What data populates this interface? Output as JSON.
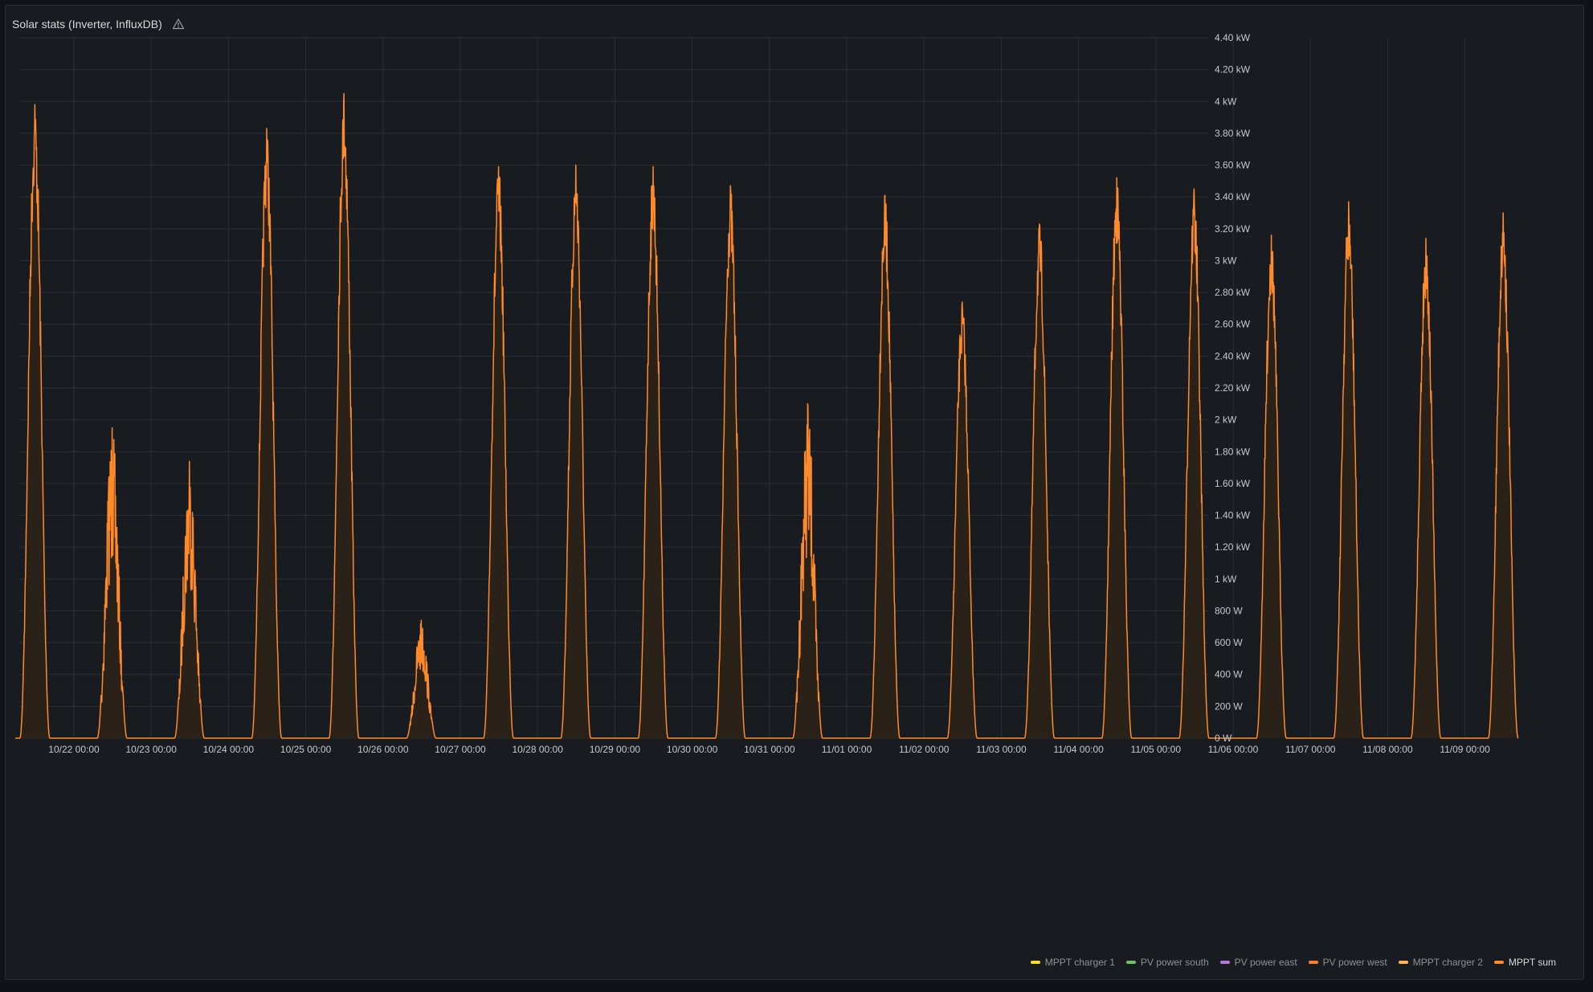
{
  "panel": {
    "title": "Solar stats (Inverter, InfluxDB)",
    "warning_icon": "warning-triangle-icon"
  },
  "colors": {
    "background": "#181b1f",
    "grid": "#2c2f35",
    "axis_text": "#c7c8ca",
    "series": "#ff8a2a",
    "fill": "#2a2119"
  },
  "legend": [
    {
      "label": "MPPT charger 1",
      "color": "#fade2a",
      "active": false
    },
    {
      "label": "PV power south",
      "color": "#73bf69",
      "active": false
    },
    {
      "label": "PV power east",
      "color": "#b877d9",
      "active": false
    },
    {
      "label": "PV power west",
      "color": "#ff7f3a",
      "active": false
    },
    {
      "label": "MPPT charger 2",
      "color": "#ffb357",
      "active": false
    },
    {
      "label": "MPPT sum",
      "color": "#ff8a2a",
      "active": true
    }
  ],
  "chart_data": {
    "type": "area",
    "x_tick_labels": [
      "10/22 00:00",
      "10/23 00:00",
      "10/24 00:00",
      "10/25 00:00",
      "10/26 00:00",
      "10/27 00:00",
      "10/28 00:00",
      "10/29 00:00",
      "10/30 00:00",
      "10/31 00:00",
      "11/01 00:00",
      "11/02 00:00",
      "11/03 00:00",
      "11/04 00:00",
      "11/05 00:00",
      "11/06 00:00",
      "11/07 00:00",
      "11/08 00:00",
      "11/09 00:00"
    ],
    "y_ticks": [
      0,
      200,
      400,
      600,
      800,
      1000,
      1200,
      1400,
      1600,
      1800,
      2000,
      2200,
      2400,
      2600,
      2800,
      3000,
      3200,
      3400,
      3600,
      3800,
      4000,
      4200,
      4400
    ],
    "y_tick_labels": [
      "0 W",
      "200 W",
      "400 W",
      "600 W",
      "800 W",
      "1 kW",
      "1.20 kW",
      "1.40 kW",
      "1.60 kW",
      "1.80 kW",
      "2 kW",
      "2.20 kW",
      "2.40 kW",
      "2.60 kW",
      "2.80 kW",
      "3 kW",
      "3.20 kW",
      "3.40 kW",
      "3.60 kW",
      "3.80 kW",
      "4 kW",
      "4.20 kW",
      "4.40 kW"
    ],
    "ylim": [
      0,
      4400
    ],
    "xlim": [
      "10/21 06:00",
      "11/09 12:00"
    ],
    "y_axis_position": "right",
    "grid": true,
    "legend_position": "bottom-right",
    "series": [
      {
        "name": "MPPT sum",
        "daily_peaks_w": [
          {
            "day": "10/21",
            "peak": 3980
          },
          {
            "day": "10/22",
            "peak": 1950
          },
          {
            "day": "10/23",
            "peak": 1740
          },
          {
            "day": "10/24",
            "peak": 3830
          },
          {
            "day": "10/25",
            "peak": 4050
          },
          {
            "day": "10/26",
            "peak": 740
          },
          {
            "day": "10/27",
            "peak": 3590
          },
          {
            "day": "10/28",
            "peak": 3600
          },
          {
            "day": "10/29",
            "peak": 3590
          },
          {
            "day": "10/30",
            "peak": 3470
          },
          {
            "day": "10/31",
            "peak": 2100
          },
          {
            "day": "11/01",
            "peak": 3410
          },
          {
            "day": "11/02",
            "peak": 2740
          },
          {
            "day": "11/03",
            "peak": 3230
          },
          {
            "day": "11/04",
            "peak": 3520
          },
          {
            "day": "11/05",
            "peak": 3450
          },
          {
            "day": "11/06",
            "peak": 3160
          },
          {
            "day": "11/07",
            "peak": 3370
          },
          {
            "day": "11/08",
            "peak": 3140
          },
          {
            "day": "11/09",
            "peak": 3300
          }
        ]
      }
    ]
  }
}
